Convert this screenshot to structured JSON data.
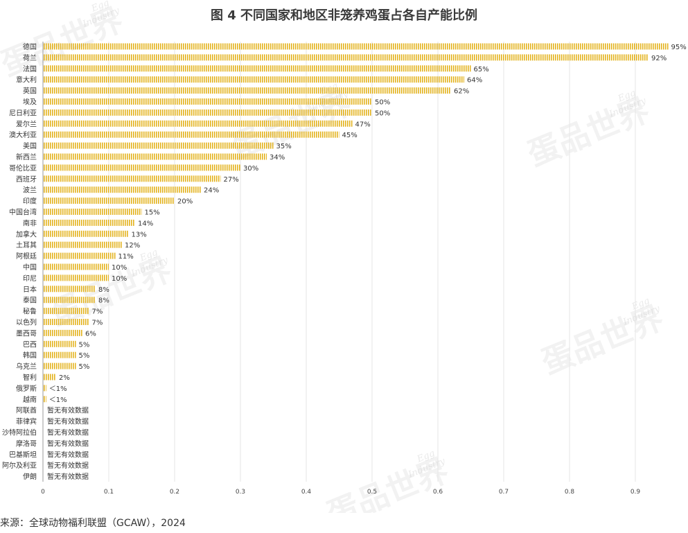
{
  "chart_data": {
    "type": "bar",
    "orientation": "horizontal",
    "title": "图 4  不同国家和地区非笼养鸡蛋占各自产能比例",
    "categories": [
      "德国",
      "荷兰",
      "法国",
      "意大利",
      "英国",
      "埃及",
      "尼日利亚",
      "爱尔兰",
      "澳大利亚",
      "美国",
      "新西兰",
      "哥伦比亚",
      "西班牙",
      "波兰",
      "印度",
      "中国台湾",
      "南非",
      "加拿大",
      "土耳其",
      "阿根廷",
      "中国",
      "印尼",
      "日本",
      "泰国",
      "秘鲁",
      "以色列",
      "墨西哥",
      "巴西",
      "韩国",
      "乌克兰",
      "智利",
      "俄罗斯",
      "越南",
      "阿联酋",
      "菲律宾",
      "沙特阿拉伯",
      "摩洛哥",
      "巴基斯坦",
      "阿尔及利亚",
      "伊朗"
    ],
    "values": [
      0.95,
      0.92,
      0.65,
      0.64,
      0.62,
      0.5,
      0.5,
      0.47,
      0.45,
      0.35,
      0.34,
      0.3,
      0.27,
      0.24,
      0.2,
      0.15,
      0.14,
      0.13,
      0.12,
      0.11,
      0.1,
      0.1,
      0.08,
      0.08,
      0.07,
      0.07,
      0.06,
      0.05,
      0.05,
      0.05,
      0.02,
      0.005,
      0.005,
      null,
      null,
      null,
      null,
      null,
      null,
      null
    ],
    "data_labels": [
      "95%",
      "92%",
      "65%",
      "64%",
      "62%",
      "50%",
      "50%",
      "47%",
      "45%",
      "35%",
      "34%",
      "30%",
      "27%",
      "24%",
      "20%",
      "15%",
      "14%",
      "13%",
      "12%",
      "11%",
      "10%",
      "10%",
      "8%",
      "8%",
      "7%",
      "7%",
      "6%",
      "5%",
      "5%",
      "5%",
      "2%",
      "＜1%",
      "＜1%",
      "暂无有效数据",
      "暂无有效数据",
      "暂无有效数据",
      "暂无有效数据",
      "暂无有效数据",
      "暂无有效数据",
      "暂无有效数据"
    ],
    "xticks": [
      "0",
      "0.1",
      "0.2",
      "0.3",
      "0.4",
      "0.5",
      "0.6",
      "0.7",
      "0.8",
      "0.9"
    ],
    "xlim": [
      0,
      0.96
    ],
    "grid": true,
    "legend": "none",
    "bar_color": "#e3b21c"
  },
  "source": "来源：全球动物福利联盟（GCAW），2024",
  "watermark": {
    "text": "蛋品世界",
    "sub_line1": "Egg",
    "sub_line2": "Industry"
  }
}
